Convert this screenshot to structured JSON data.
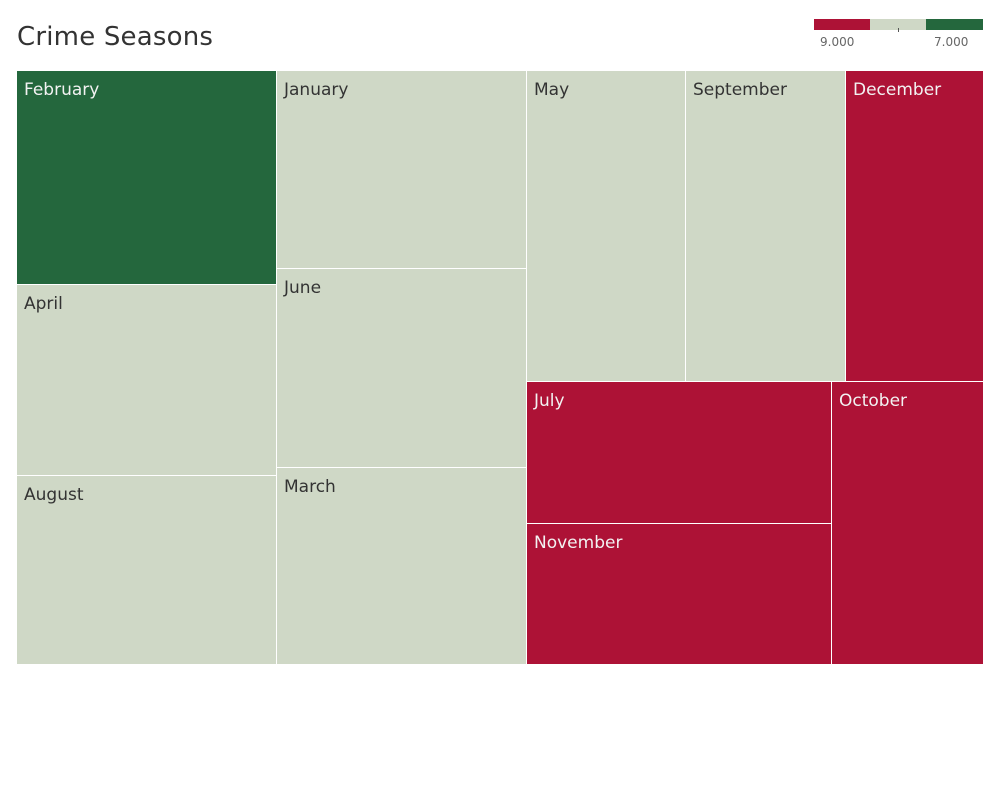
{
  "chart_data": {
    "type": "treemap",
    "title": "Crime Seasons",
    "color_legend": {
      "low_label": "9.000",
      "high_label": "7.000",
      "colors": [
        "#ad1236",
        "#cfd8c6",
        "#24673d"
      ]
    },
    "cells": [
      {
        "name": "February",
        "color": "#24673d",
        "text_color": "#f2f2f2"
      },
      {
        "name": "April",
        "color": "#cfd8c6",
        "text_color": "#333333"
      },
      {
        "name": "August",
        "color": "#cfd8c6",
        "text_color": "#333333"
      },
      {
        "name": "January",
        "color": "#cfd8c6",
        "text_color": "#333333"
      },
      {
        "name": "June",
        "color": "#cfd8c6",
        "text_color": "#333333"
      },
      {
        "name": "March",
        "color": "#cfd8c6",
        "text_color": "#333333"
      },
      {
        "name": "May",
        "color": "#cfd8c6",
        "text_color": "#333333"
      },
      {
        "name": "September",
        "color": "#cfd8c6",
        "text_color": "#333333"
      },
      {
        "name": "December",
        "color": "#ad1236",
        "text_color": "#f2f2f2"
      },
      {
        "name": "July",
        "color": "#ad1236",
        "text_color": "#f2f2f2"
      },
      {
        "name": "November",
        "color": "#ad1236",
        "text_color": "#f2f2f2"
      },
      {
        "name": "October",
        "color": "#ad1236",
        "text_color": "#f2f2f2"
      }
    ]
  }
}
